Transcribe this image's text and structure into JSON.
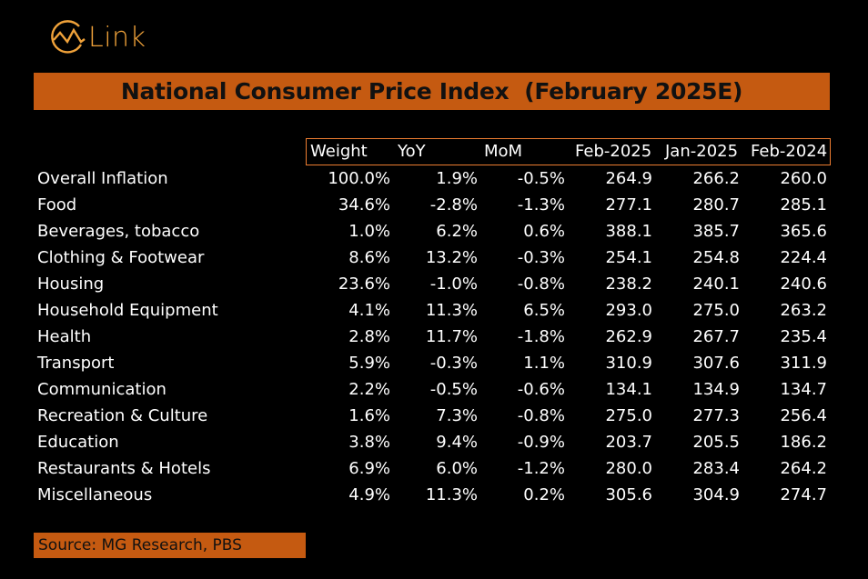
{
  "logo": {
    "icon": "link-logo-icon",
    "text": "Link",
    "color": "#f0a23a"
  },
  "title": "National Consumer Price Index  (February 2025E)",
  "accent_color": "#c55a11",
  "header_border_color": "#ed7d31",
  "columns": [
    "Weight",
    "YoY",
    "MoM",
    "Feb-2025",
    "Jan-2025",
    "Feb-2024"
  ],
  "rows": [
    {
      "label": "Overall Inflation",
      "weight": "100.0%",
      "yoy": "1.9%",
      "mom": "-0.5%",
      "feb2025": "264.9",
      "jan2025": "266.2",
      "feb2024": "260.0"
    },
    {
      "label": "Food",
      "weight": "34.6%",
      "yoy": "-2.8%",
      "mom": "-1.3%",
      "feb2025": "277.1",
      "jan2025": "280.7",
      "feb2024": "285.1"
    },
    {
      "label": "Beverages, tobacco",
      "weight": "1.0%",
      "yoy": "6.2%",
      "mom": "0.6%",
      "feb2025": "388.1",
      "jan2025": "385.7",
      "feb2024": "365.6"
    },
    {
      "label": "Clothing & Footwear",
      "weight": "8.6%",
      "yoy": "13.2%",
      "mom": "-0.3%",
      "feb2025": "254.1",
      "jan2025": "254.8",
      "feb2024": "224.4"
    },
    {
      "label": "Housing",
      "weight": "23.6%",
      "yoy": "-1.0%",
      "mom": "-0.8%",
      "feb2025": "238.2",
      "jan2025": "240.1",
      "feb2024": "240.6"
    },
    {
      "label": "Household Equipment",
      "weight": "4.1%",
      "yoy": "11.3%",
      "mom": "6.5%",
      "feb2025": "293.0",
      "jan2025": "275.0",
      "feb2024": "263.2"
    },
    {
      "label": "Health",
      "weight": "2.8%",
      "yoy": "11.7%",
      "mom": "-1.8%",
      "feb2025": "262.9",
      "jan2025": "267.7",
      "feb2024": "235.4"
    },
    {
      "label": "Transport",
      "weight": "5.9%",
      "yoy": "-0.3%",
      "mom": "1.1%",
      "feb2025": "310.9",
      "jan2025": "307.6",
      "feb2024": "311.9"
    },
    {
      "label": "Communication",
      "weight": "2.2%",
      "yoy": "-0.5%",
      "mom": "-0.6%",
      "feb2025": "134.1",
      "jan2025": "134.9",
      "feb2024": "134.7"
    },
    {
      "label": "Recreation & Culture",
      "weight": "1.6%",
      "yoy": "7.3%",
      "mom": "-0.8%",
      "feb2025": "275.0",
      "jan2025": "277.3",
      "feb2024": "256.4"
    },
    {
      "label": "Education",
      "weight": "3.8%",
      "yoy": "9.4%",
      "mom": "-0.9%",
      "feb2025": "203.7",
      "jan2025": "205.5",
      "feb2024": "186.2"
    },
    {
      "label": "Restaurants & Hotels",
      "weight": "6.9%",
      "yoy": "6.0%",
      "mom": "-1.2%",
      "feb2025": "280.0",
      "jan2025": "283.4",
      "feb2024": "264.2"
    },
    {
      "label": "Miscellaneous",
      "weight": "4.9%",
      "yoy": "11.3%",
      "mom": "0.2%",
      "feb2025": "305.6",
      "jan2025": "304.9",
      "feb2024": "274.7"
    }
  ],
  "source": "Source: MG Research, PBS"
}
